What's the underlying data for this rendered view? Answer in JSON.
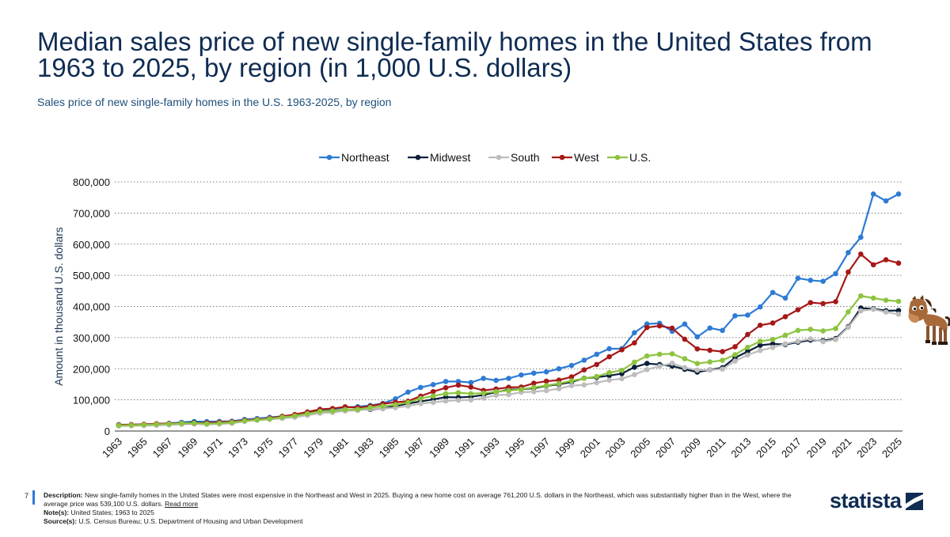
{
  "title": "Median sales price of new single-family homes in the United States from 1963 to 2025, by region (in 1,000 U.S. dollars)",
  "subtitle": "Sales price of new single-family homes in the U.S. 1963-2025, by region",
  "page_number": "7",
  "footer": {
    "description_label": "Description:",
    "description_text": "New single-family homes in the United States were most expensive in the Northeast and West in 2025. Buying a new home cost on average 761,200 U.S. dollars in the Northeast, which was substantially higher than in the West, where the average price was 539,100 U.S. dollars.",
    "read_more": "Read more",
    "notes_label": "Note(s):",
    "notes_text": "United States; 1963 to 2025",
    "source_label": "Source(s):",
    "source_text": "U.S. Census Bureau; U.S. Department of Housing and Urban Development"
  },
  "logo_text": "statista",
  "chart_data": {
    "type": "line",
    "ylabel": "Amount in thousand U.S. dollars",
    "xlabel": "",
    "ylim": [
      0,
      800000
    ],
    "yticks": [
      0,
      100000,
      200000,
      300000,
      400000,
      500000,
      600000,
      700000,
      800000
    ],
    "ytick_labels": [
      "0",
      "100,000",
      "200,000",
      "300,000",
      "400,000",
      "500,000",
      "600,000",
      "700,000",
      "800,000"
    ],
    "xticks": [
      "1963",
      "1965",
      "1967",
      "1969",
      "1971",
      "1973",
      "1975",
      "1977",
      "1979",
      "1981",
      "1983",
      "1985",
      "1987",
      "1989",
      "1991",
      "1993",
      "1995",
      "1997",
      "1999",
      "2001",
      "2003",
      "2005",
      "2007",
      "2009",
      "2011",
      "2013",
      "2015",
      "2017",
      "2019",
      "2021",
      "2023",
      "2025"
    ],
    "grid": "horizontal dotted",
    "legend_position": "top-center",
    "x": [
      1963,
      1964,
      1965,
      1966,
      1967,
      1968,
      1969,
      1970,
      1971,
      1972,
      1973,
      1974,
      1975,
      1976,
      1977,
      1978,
      1979,
      1980,
      1981,
      1982,
      1983,
      1984,
      1985,
      1986,
      1987,
      1988,
      1989,
      1990,
      1991,
      1992,
      1993,
      1994,
      1995,
      1996,
      1997,
      1998,
      1999,
      2000,
      2001,
      2002,
      2003,
      2004,
      2005,
      2006,
      2007,
      2008,
      2009,
      2010,
      2011,
      2012,
      2013,
      2014,
      2015,
      2016,
      2017,
      2018,
      2019,
      2020,
      2021,
      2022,
      2023,
      2024,
      2025
    ],
    "series": [
      {
        "name": "Northeast",
        "color": "#2d7bd4",
        "values": [
          20400,
          20500,
          21500,
          22900,
          24900,
          27900,
          30200,
          30300,
          30600,
          31400,
          37100,
          40100,
          44000,
          47300,
          51600,
          58100,
          65500,
          69500,
          76000,
          78200,
          82200,
          88600,
          103300,
          125000,
          140000,
          149000,
          159000,
          159000,
          155900,
          169000,
          162600,
          169000,
          180000,
          186000,
          190000,
          200000,
          210500,
          227400,
          246400,
          264300,
          264500,
          315800,
          343800,
          346000,
          320200,
          343600,
          302500,
          330800,
          323000,
          370000,
          372200,
          398600,
          445000,
          427000,
          490700,
          484000,
          480800,
          505400,
          573000,
          622000,
          761200,
          739000,
          761200
        ]
      },
      {
        "name": "Midwest",
        "color": "#0b1f38",
        "values": [
          17300,
          17900,
          19400,
          21400,
          23400,
          25100,
          27600,
          24400,
          27200,
          29300,
          32900,
          36100,
          39600,
          44800,
          51500,
          59200,
          63900,
          63400,
          65900,
          68900,
          69400,
          72000,
          80300,
          88300,
          95000,
          101600,
          108800,
          107900,
          110000,
          115600,
          125000,
          132900,
          134000,
          137500,
          145000,
          150000,
          157500,
          169700,
          172600,
          178000,
          184300,
          205000,
          216900,
          213500,
          208600,
          198300,
          189200,
          196500,
          203300,
          235300,
          255300,
          275300,
          279900,
          277800,
          285200,
          292000,
          290000,
          297000,
          335000,
          395000,
          392500,
          386300,
          387000
        ]
      },
      {
        "name": "South",
        "color": "#bdbdbd",
        "values": [
          16100,
          16700,
          17400,
          18200,
          19400,
          21500,
          22800,
          21300,
          22500,
          24800,
          30900,
          34500,
          37300,
          40500,
          44100,
          50300,
          57300,
          59600,
          64400,
          66100,
          70900,
          72000,
          75000,
          80200,
          88000,
          92000,
          96400,
          99000,
          100000,
          105500,
          115000,
          116900,
          124500,
          126200,
          129600,
          135800,
          145900,
          148000,
          155400,
          163400,
          168100,
          181100,
          197300,
          208200,
          217700,
          203700,
          195800,
          196000,
          198800,
          224700,
          244100,
          258500,
          268500,
          280000,
          288000,
          296000,
          287000,
          294000,
          333000,
          386000,
          391000,
          382000,
          375000
        ]
      },
      {
        "name": "West",
        "color": "#a61818",
        "values": [
          19600,
          20400,
          21600,
          23200,
          24100,
          25100,
          25300,
          26200,
          28500,
          29800,
          34500,
          37200,
          41500,
          47200,
          53000,
          61300,
          69600,
          72300,
          77800,
          75000,
          80100,
          87300,
          92600,
          95700,
          112000,
          126500,
          139000,
          147500,
          141100,
          130400,
          135000,
          140400,
          141000,
          153400,
          160000,
          163500,
          173700,
          196400,
          213600,
          238500,
          260900,
          283100,
          332600,
          337700,
          330400,
          294800,
          263700,
          259300,
          255000,
          270600,
          309900,
          339700,
          346900,
          367200,
          389500,
          412400,
          409400,
          415400,
          510500,
          568000,
          534000,
          550000,
          539100
        ]
      },
      {
        "name": "U.S.",
        "color": "#8cc43f",
        "values": [
          18000,
          18900,
          20000,
          21400,
          22700,
          24700,
          25600,
          23400,
          25200,
          27600,
          32500,
          35900,
          39300,
          44200,
          48800,
          55700,
          62900,
          64600,
          68900,
          69300,
          75300,
          79900,
          84300,
          92000,
          104500,
          112500,
          120000,
          122900,
          120000,
          121500,
          126500,
          130000,
          133900,
          140000,
          146000,
          152500,
          161000,
          169000,
          175200,
          187600,
          195000,
          221000,
          240900,
          246500,
          247900,
          232100,
          216700,
          221800,
          227200,
          245200,
          268900,
          288500,
          294200,
          307800,
          323100,
          326400,
          321500,
          329000,
          382400,
          434000,
          427000,
          420000,
          416500
        ]
      }
    ]
  }
}
